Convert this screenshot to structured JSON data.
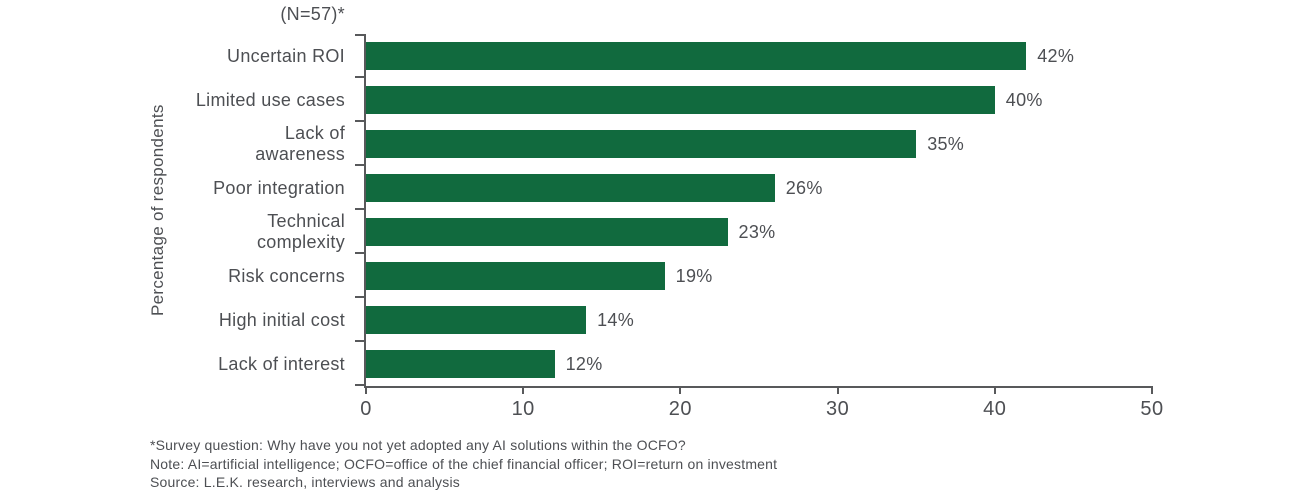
{
  "chart_data": {
    "type": "bar",
    "orientation": "horizontal",
    "n_label": "(N=57)*",
    "ylabel": "Percentage of respondents",
    "categories": [
      "Uncertain ROI",
      "Limited use cases",
      "Lack of\nawareness",
      "Poor integration",
      "Technical\ncomplexity",
      "Risk concerns",
      "High initial cost",
      "Lack of interest"
    ],
    "values": [
      42,
      40,
      35,
      26,
      23,
      19,
      14,
      12
    ],
    "value_labels": [
      "42%",
      "40%",
      "35%",
      "26%",
      "23%",
      "19%",
      "14%",
      "12%"
    ],
    "xlim": [
      0,
      50
    ],
    "x_ticks": [
      "0",
      "10",
      "20",
      "30",
      "40",
      "50"
    ],
    "grid": false,
    "colors": {
      "bar": "#116a3e",
      "axis": "#58595b",
      "text": "#4d4f53"
    }
  },
  "footnotes": [
    "*Survey question: Why have you not yet adopted any AI solutions within the OCFO?",
    "Note: AI=artificial intelligence; OCFO=office of the chief financial officer; ROI=return on investment",
    "Source: L.E.K. research, interviews and analysis"
  ]
}
